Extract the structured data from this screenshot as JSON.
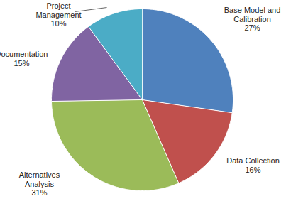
{
  "chart_data": {
    "type": "pie",
    "categories": [
      "Base Model and Calibration",
      "Data Collection",
      "Alternatives Analysis",
      "Documentation",
      "Project Management"
    ],
    "values": [
      27,
      16,
      31,
      15,
      10
    ],
    "value_labels": [
      "27%",
      "16%",
      "31%",
      "15%",
      "10%"
    ],
    "colors": [
      "#4f81bd",
      "#c0504d",
      "#9bbb59",
      "#8064a2",
      "#4bacc6"
    ],
    "data_labels": true
  }
}
